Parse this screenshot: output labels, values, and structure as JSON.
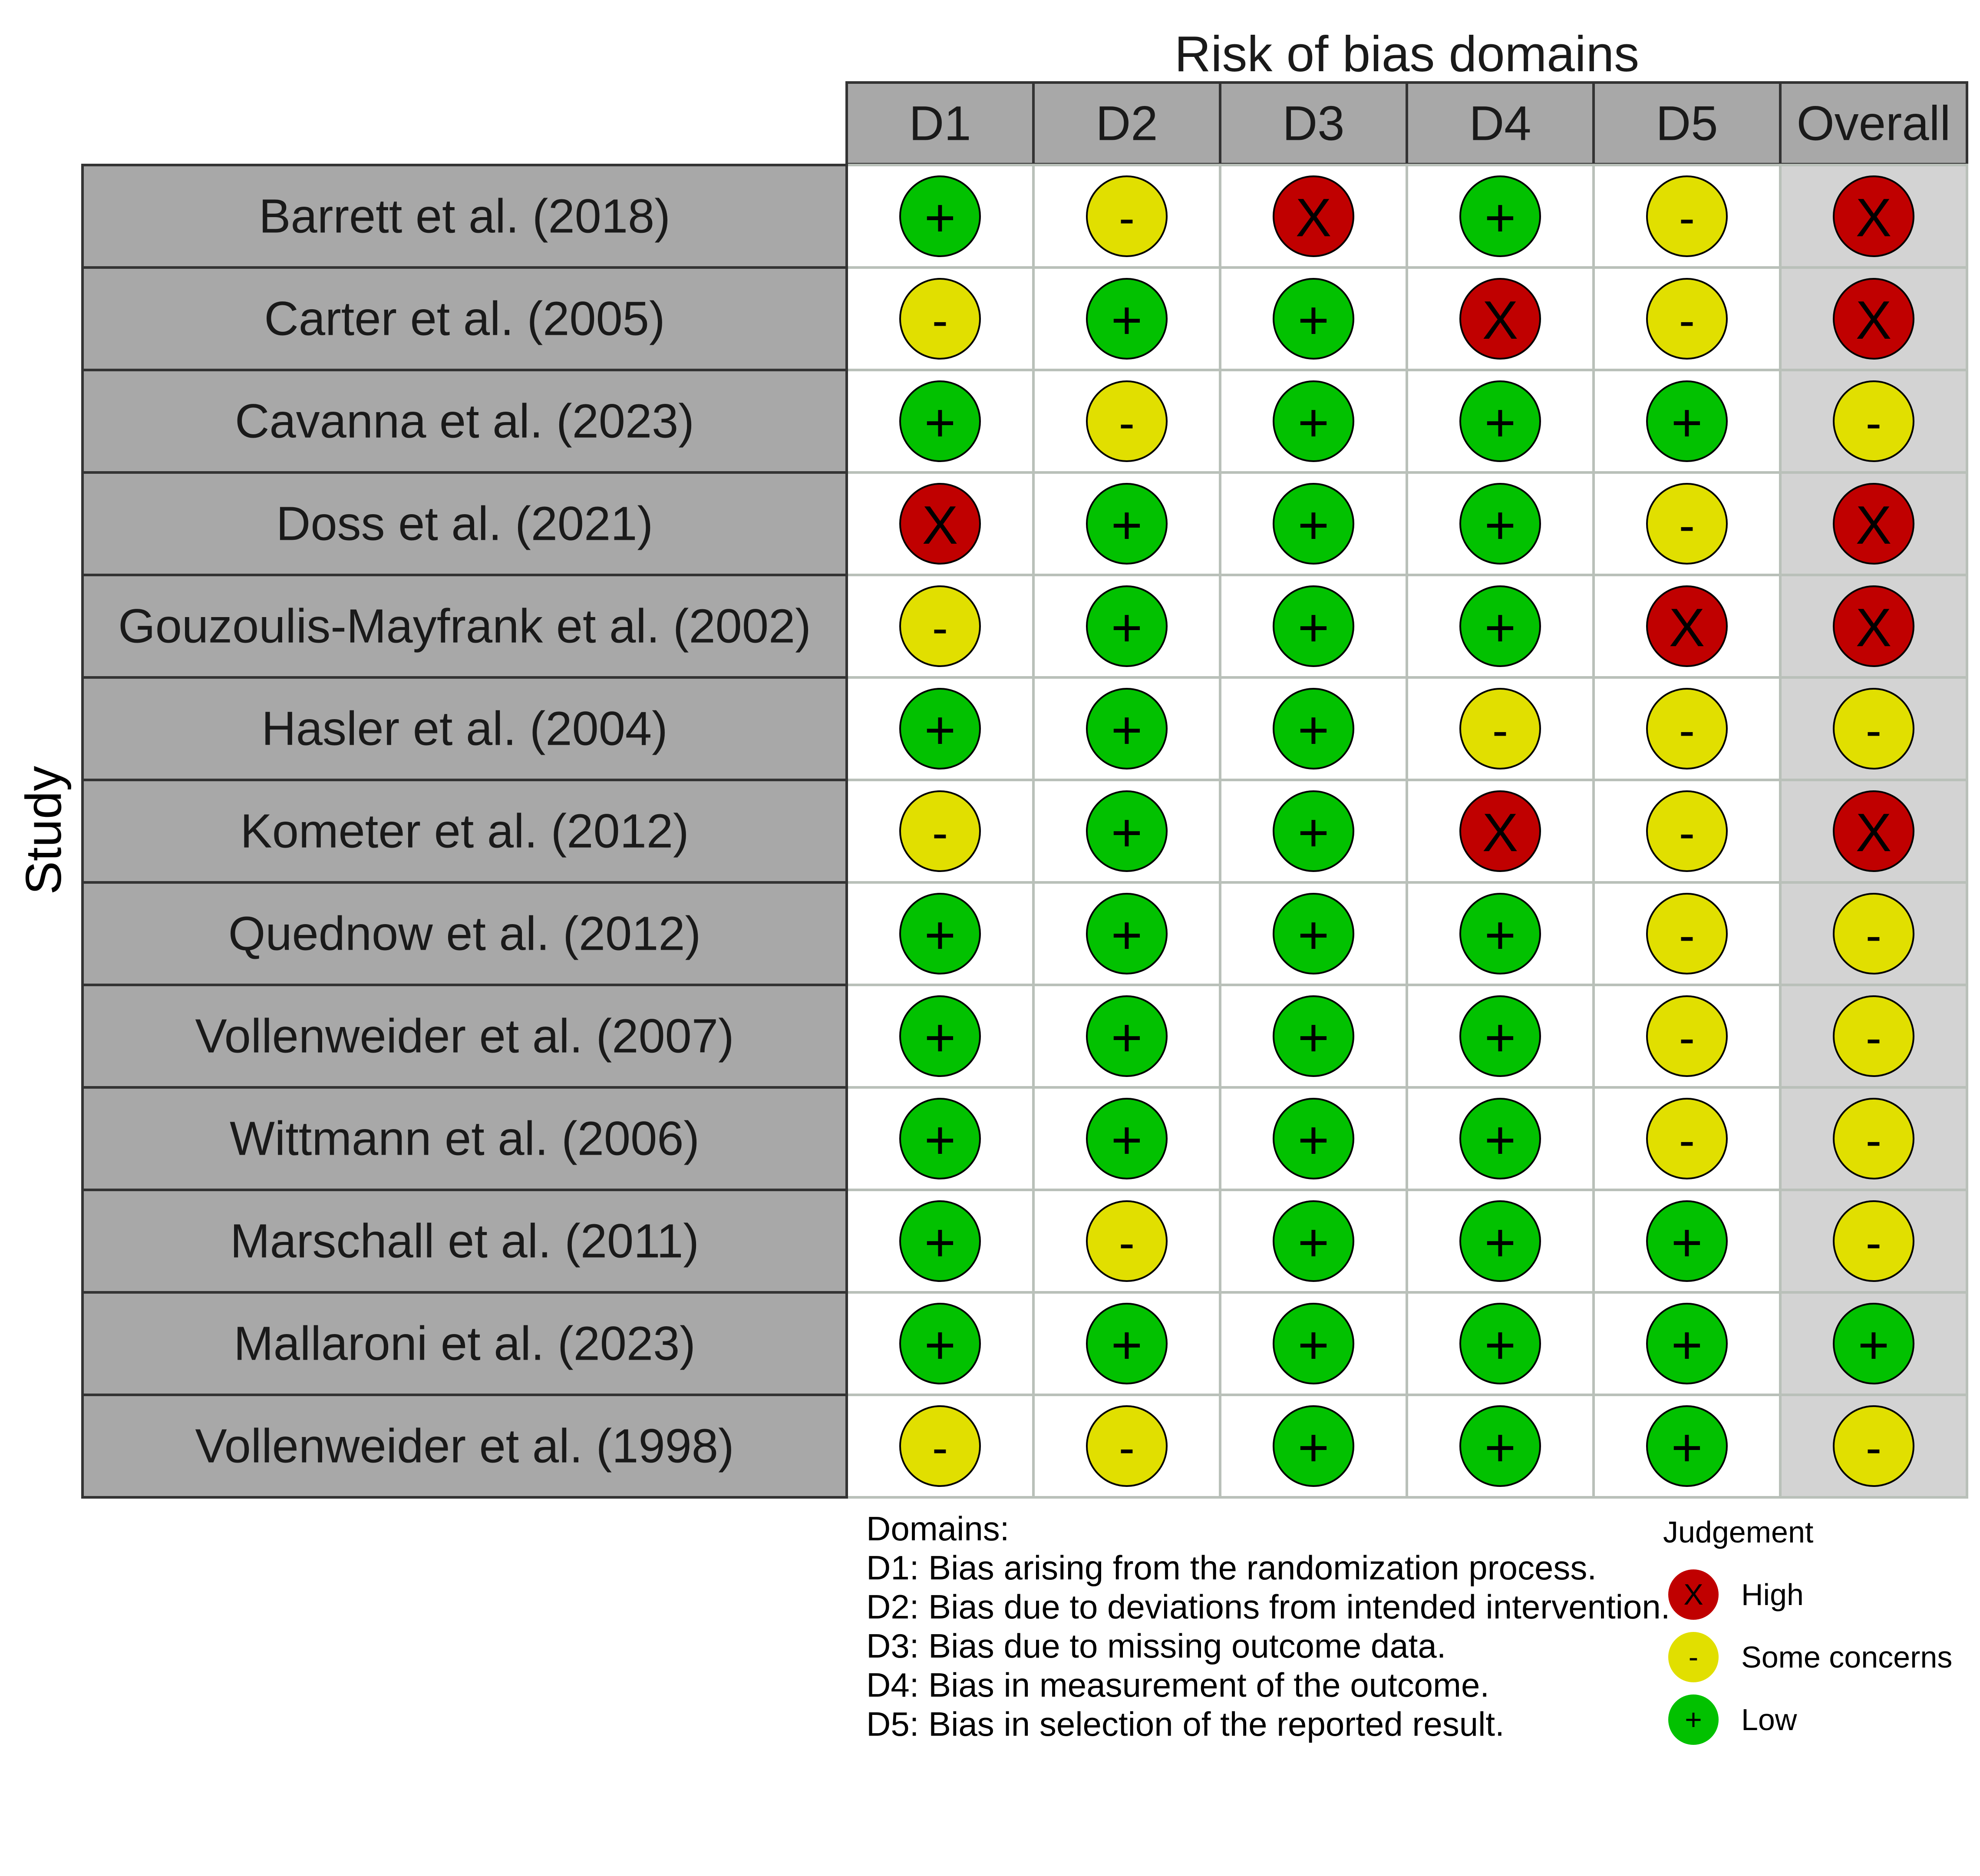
{
  "chart_data": {
    "type": "table",
    "title": "Risk of bias domains",
    "ylabel": "Study",
    "columns": [
      "D1",
      "D2",
      "D3",
      "D4",
      "D5",
      "Overall"
    ],
    "studies": [
      "Barrett et al. (2018)",
      "Carter et al. (2005)",
      "Cavanna et al. (2023)",
      "Doss et al. (2021)",
      "Gouzoulis-Mayfrank et al. (2002)",
      "Hasler et al. (2004)",
      "Kometer et al. (2012)",
      "Quednow et al. (2012)",
      "Vollenweider et al. (2007)",
      "Wittmann et al. (2006)",
      "Marschall et al. (2011)",
      "Mallaroni et al. (2023)",
      "Vollenweider et al. (1998)"
    ],
    "judgements": [
      [
        "Low",
        "Some concerns",
        "High",
        "Low",
        "Some concerns",
        "High"
      ],
      [
        "Some concerns",
        "Low",
        "Low",
        "High",
        "Some concerns",
        "High"
      ],
      [
        "Low",
        "Some concerns",
        "Low",
        "Low",
        "Low",
        "Some concerns"
      ],
      [
        "High",
        "Low",
        "Low",
        "Low",
        "Some concerns",
        "High"
      ],
      [
        "Some concerns",
        "Low",
        "Low",
        "Low",
        "High",
        "High"
      ],
      [
        "Low",
        "Low",
        "Low",
        "Some concerns",
        "Some concerns",
        "Some concerns"
      ],
      [
        "Some concerns",
        "Low",
        "Low",
        "High",
        "Some concerns",
        "High"
      ],
      [
        "Low",
        "Low",
        "Low",
        "Low",
        "Some concerns",
        "Some concerns"
      ],
      [
        "Low",
        "Low",
        "Low",
        "Low",
        "Some concerns",
        "Some concerns"
      ],
      [
        "Low",
        "Low",
        "Low",
        "Low",
        "Some concerns",
        "Some concerns"
      ],
      [
        "Low",
        "Some concerns",
        "Low",
        "Low",
        "Low",
        "Some concerns"
      ],
      [
        "Low",
        "Low",
        "Low",
        "Low",
        "Low",
        "Low"
      ],
      [
        "Some concerns",
        "Some concerns",
        "Low",
        "Low",
        "Low",
        "Some concerns"
      ]
    ],
    "symbols": {
      "High": "X",
      "Some concerns": "-",
      "Low": "+"
    },
    "colors": {
      "High": "#c00000",
      "Some concerns": "#e1df00",
      "Low": "#02c100"
    },
    "domains_heading": "Domains:",
    "domain_descriptions": [
      "D1: Bias arising from the randomization process.",
      "D2: Bias due to deviations from intended intervention.",
      "D3: Bias due to missing outcome data.",
      "D4: Bias in measurement of the outcome.",
      "D5: Bias in selection of the reported result."
    ],
    "legend_title": "Judgement",
    "legend_items": [
      "High",
      "Some concerns",
      "Low"
    ]
  }
}
